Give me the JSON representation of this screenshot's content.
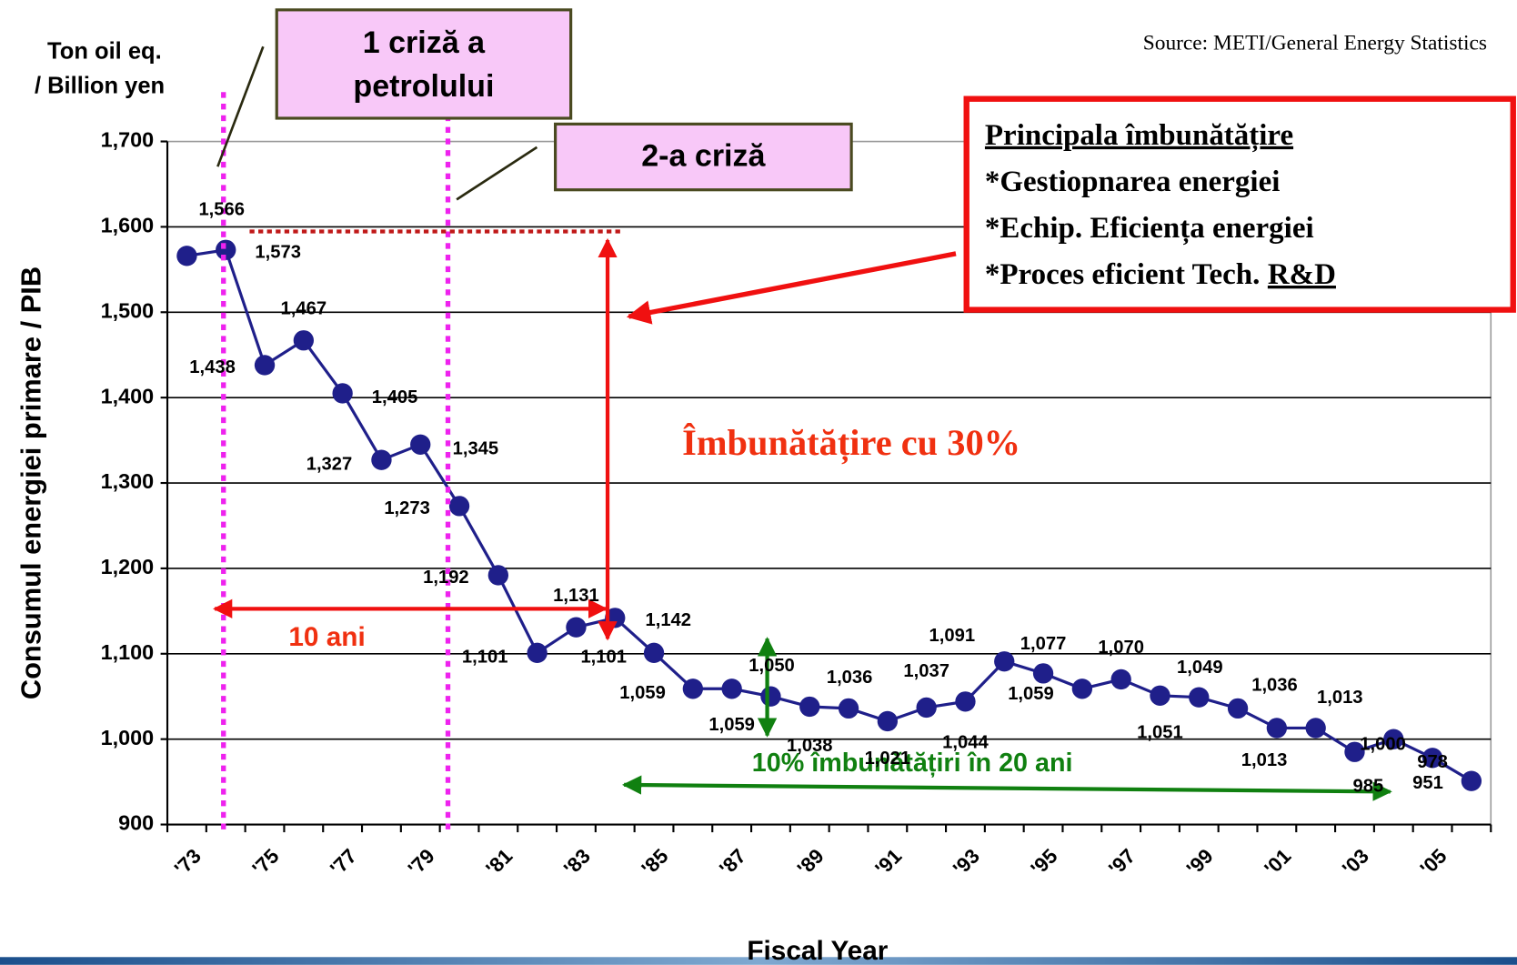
{
  "chart_data": {
    "type": "line",
    "y_axis_label": "Consumul energiei primare / PIB",
    "x_axis_label": "Fiscal Year",
    "unit_label": [
      "Ton oil eq.",
      "/ Billion yen"
    ],
    "source": "Source: METI/General Energy Statistics",
    "categories": [
      "'73",
      null,
      "'75",
      null,
      "'77",
      null,
      "'79",
      null,
      "'81",
      null,
      "'83",
      null,
      "'85",
      null,
      "'87",
      null,
      "'89",
      null,
      "'91",
      null,
      "'93",
      null,
      "'95",
      null,
      "'97",
      null,
      "'99",
      null,
      "'01",
      null,
      "'03",
      null,
      "'05",
      null
    ],
    "series": [
      {
        "name": "Consumul energiei primare / PIB",
        "color": "#1f1f8a",
        "values": [
          1566,
          1573,
          1438,
          1467,
          1405,
          1327,
          1345,
          1273,
          1192,
          1101,
          1131,
          1142,
          1101,
          1059,
          1059,
          1050,
          1038,
          1036,
          1021,
          1037,
          1044,
          1091,
          1077,
          1059,
          1070,
          1051,
          1049,
          1036,
          1013,
          1013,
          985,
          1000,
          978,
          951
        ],
        "value_labels": [
          "1,566",
          "1,573",
          "1,438",
          "1,467",
          "1,405",
          "1,327",
          "1,345",
          "1,273",
          "1,192",
          "1,101",
          "1,131",
          "1,142",
          "1,101",
          "1,059",
          "1,059",
          "1,050",
          "1,038",
          "1,036",
          "1,021",
          "1,037",
          "1,044",
          "1,091",
          "1,077",
          "1,059",
          "1,070",
          "1,051",
          "1,049",
          "1,036",
          "1,013",
          "1,013",
          "985",
          "1,000",
          "978",
          "951"
        ]
      }
    ],
    "ylim": [
      900,
      1700
    ],
    "yticks": [
      {
        "value": 900,
        "label": "900"
      },
      {
        "value": 1000,
        "label": "1,000"
      },
      {
        "value": 1100,
        "label": "1,100"
      },
      {
        "value": 1200,
        "label": "1,200"
      },
      {
        "value": 1300,
        "label": "1,300"
      },
      {
        "value": 1400,
        "label": "1,400"
      },
      {
        "value": 1500,
        "label": "1,500"
      },
      {
        "value": 1600,
        "label": "1,600"
      },
      {
        "value": 1700,
        "label": "1,700"
      }
    ],
    "grid": true,
    "annotations": {
      "crisis1": [
        "1 criză a",
        "petrolului"
      ],
      "crisis2": "2-a criză",
      "improvement_box": [
        "Principala îmbunătățire",
        "*Gestiopnarea energiei",
        "*Echip. Eficiența energiei",
        "*Proces eficient Tech.",
        "R&D"
      ],
      "improvement_30": "Îmbunătățire cu 30%",
      "ten_years": "10 ani",
      "twenty_years": "10% îmbunătățiri în 20 ani"
    }
  }
}
